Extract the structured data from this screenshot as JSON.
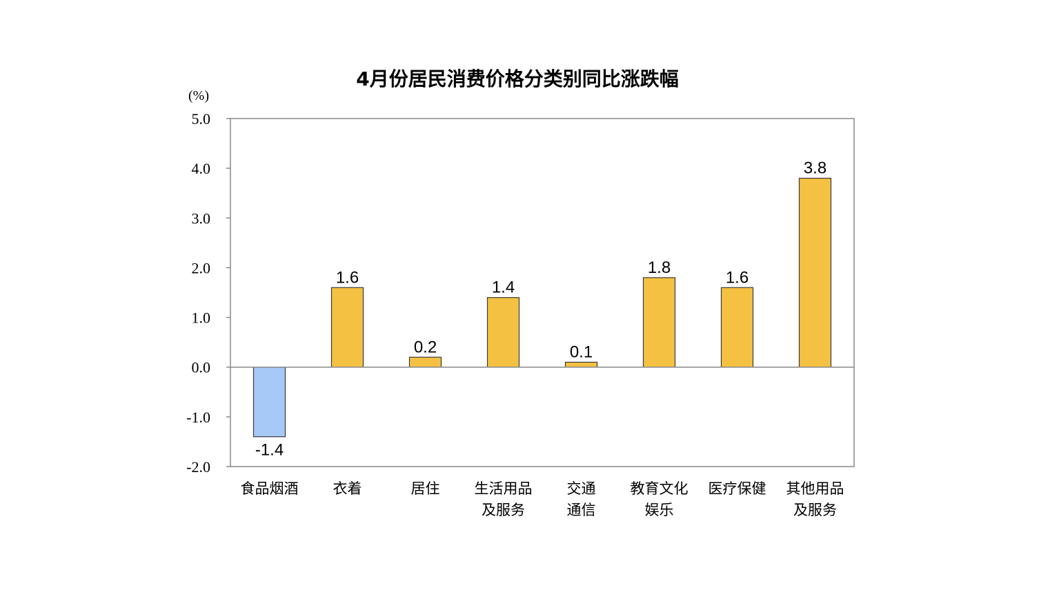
{
  "chart_data": {
    "type": "bar",
    "title": "4月份居民消费价格分类别同比涨跌幅",
    "ylabel": "(%)",
    "ylim": [
      -2.0,
      5.0
    ],
    "yticks": [
      "5.0",
      "4.0",
      "3.0",
      "2.0",
      "1.0",
      "0.0",
      "-1.0",
      "-2.0"
    ],
    "categories": [
      [
        "食品烟酒"
      ],
      [
        "衣着"
      ],
      [
        "居住"
      ],
      [
        "生活用品",
        "及服务"
      ],
      [
        "交通",
        "通信"
      ],
      [
        "教育文化",
        "娱乐"
      ],
      [
        "医疗保健"
      ],
      [
        "其他用品",
        "及服务"
      ]
    ],
    "values": [
      -1.4,
      1.6,
      0.2,
      1.4,
      0.1,
      1.8,
      1.6,
      3.8
    ],
    "value_labels": [
      "-1.4",
      "1.6",
      "0.2",
      "1.4",
      "0.1",
      "1.8",
      "1.6",
      "3.8"
    ],
    "grid": false,
    "colors": {
      "positive": "#F4C142",
      "negative": "#A6C9F7",
      "bar_edge": "#3a3a3a",
      "axis": "#888888"
    }
  }
}
